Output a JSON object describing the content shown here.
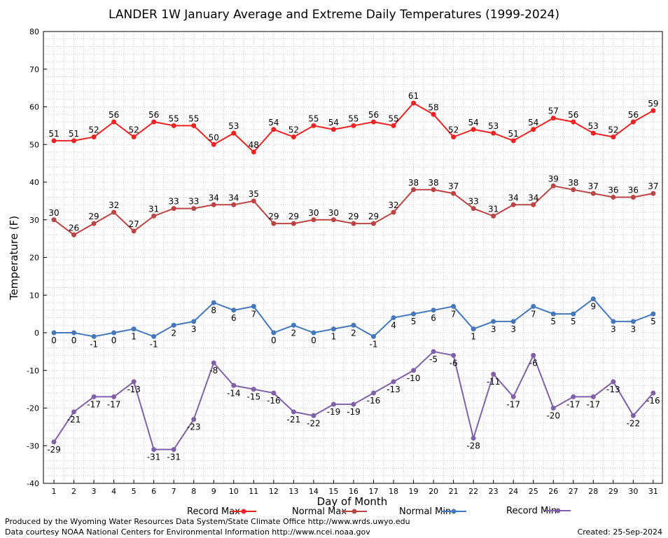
{
  "chart_data": {
    "type": "line",
    "title": "LANDER 1W January Average and Extreme Daily Temperatures (1999-2024)",
    "xlabel": "Day of Month",
    "ylabel": "Temperature (F)",
    "ylim": [
      -40,
      80
    ],
    "yticks": [
      "-40",
      "-30",
      "-20",
      "-10",
      "0",
      "10",
      "20",
      "30",
      "40",
      "50",
      "60",
      "70",
      "80"
    ],
    "x": [
      "1",
      "2",
      "3",
      "4",
      "5",
      "6",
      "7",
      "8",
      "9",
      "10",
      "11",
      "12",
      "13",
      "14",
      "15",
      "16",
      "17",
      "18",
      "19",
      "20",
      "21",
      "22",
      "23",
      "24",
      "25",
      "26",
      "27",
      "28",
      "29",
      "30",
      "31"
    ],
    "grid": true,
    "legend_position": "bottom",
    "series": [
      {
        "name": "Record Max",
        "color": "#ee2222",
        "label_position": "above",
        "values": [
          51,
          51,
          52,
          56,
          52,
          56,
          55,
          55,
          50,
          53,
          48,
          54,
          52,
          55,
          54,
          55,
          56,
          55,
          61,
          58,
          52,
          54,
          53,
          51,
          54,
          57,
          56,
          53,
          52,
          56,
          59
        ]
      },
      {
        "name": "Normal Max",
        "color": "#bb4444",
        "label_position": "above",
        "values": [
          30,
          26,
          29,
          32,
          27,
          31,
          33,
          33,
          34,
          34,
          35,
          29,
          29,
          30,
          30,
          29,
          29,
          32,
          38,
          38,
          37,
          33,
          31,
          34,
          34,
          39,
          38,
          37,
          36,
          36,
          37
        ]
      },
      {
        "name": "Normal Min",
        "color": "#4477bb",
        "label_position": "below",
        "values": [
          0,
          0,
          -1,
          0,
          1,
          -1,
          2,
          3,
          8,
          6,
          7,
          0,
          2,
          0,
          1,
          2,
          -1,
          4,
          5,
          6,
          7,
          1,
          3,
          3,
          7,
          5,
          5,
          9,
          3,
          3,
          5
        ]
      },
      {
        "name": "Record Min",
        "color": "#8060a8",
        "label_position": "below",
        "values": [
          -29,
          -21,
          -17,
          -17,
          -13,
          -31,
          -31,
          -23,
          -8,
          -14,
          -15,
          -16,
          -21,
          -22,
          -19,
          -19,
          -16,
          -13,
          -10,
          -5,
          -6,
          -28,
          -11,
          -17,
          -6,
          -20,
          -17,
          -17,
          -13,
          -22,
          -16
        ]
      }
    ]
  },
  "footer": {
    "line1": "Produced by the Wyoming Water Resources Data System/State Climate Office http://www.wrds.uwyo.edu",
    "line2": "Data courtesy NOAA National Centers for Environmental Information http://www.ncei.noaa.gov",
    "created": "Created:  25-Sep-2024"
  }
}
